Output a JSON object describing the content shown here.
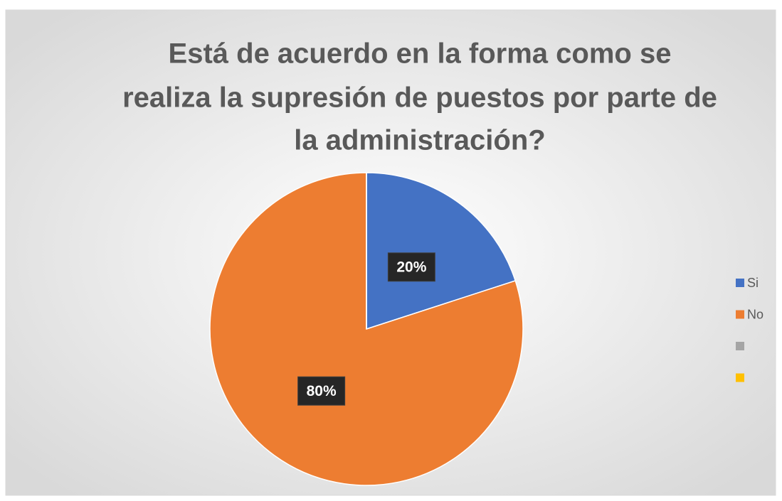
{
  "chart_data": {
    "type": "pie",
    "title": [
      "Está de acuerdo en la forma como se",
      "realiza la supresión de puestos por parte de",
      "la administración?"
    ],
    "categories": [
      "Si",
      "No",
      null,
      null
    ],
    "values": [
      20,
      80,
      0,
      0
    ],
    "value_labels": [
      "20%",
      "80%",
      null,
      null
    ],
    "colors": [
      "#4472c4",
      "#ed7d31",
      "#a5a5a5",
      "#ffc000"
    ],
    "legend": "right"
  }
}
